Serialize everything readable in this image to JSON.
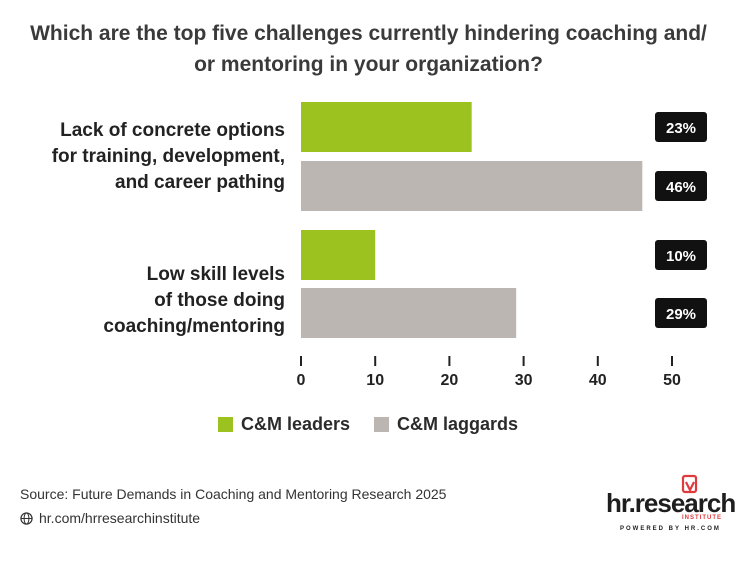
{
  "title": {
    "line1": "Which are the top five challenges currently hindering coaching and/",
    "line2": "or mentoring in your organization?"
  },
  "chart_data": {
    "type": "bar",
    "orientation": "horizontal",
    "categories": [
      {
        "lines": [
          "Lack of concrete options",
          "for training, development,",
          "and career pathing"
        ]
      },
      {
        "lines": [
          "Low skill levels",
          "of those doing",
          "coaching/mentoring"
        ]
      }
    ],
    "series": [
      {
        "name": "C&M leaders",
        "color": "#9cc21f",
        "values": [
          23,
          10
        ],
        "labels": [
          "23%",
          "10%"
        ]
      },
      {
        "name": "C&M laggards",
        "color": "#bcb6b3",
        "values": [
          46,
          29
        ],
        "labels": [
          "46%",
          "29%"
        ]
      }
    ],
    "xlim": [
      0,
      50
    ],
    "xticks": [
      "0",
      "10",
      "20",
      "30",
      "40",
      "50"
    ],
    "grid": false,
    "legend_position": "bottom"
  },
  "legend": {
    "leaders": "C&M leaders",
    "laggards": "C&M laggards",
    "leaders_color": "#9cc21f",
    "laggards_color": "#bcb6b3"
  },
  "footer": {
    "source": "Source:  Future Demands in Coaching and Mentoring Research 2025",
    "url": "hr.com/hrresearchinstitute",
    "icon": "globe-icon"
  },
  "logo": {
    "text": "hr.research",
    "sub": "INSTITUTE",
    "powered": "POWERED BY HR.COM",
    "accent": "#e03a3e"
  }
}
